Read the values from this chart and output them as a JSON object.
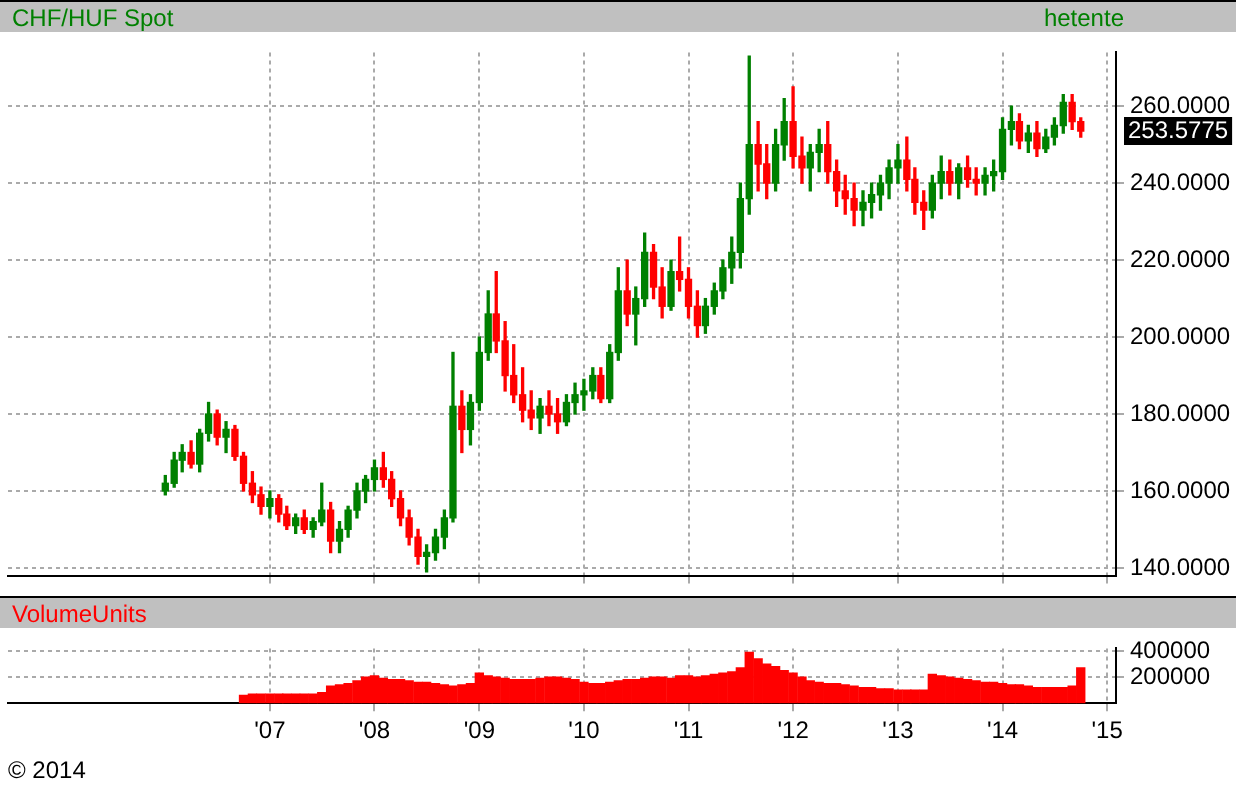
{
  "chart_data": [
    {
      "type": "candlestick",
      "title": "CHF/HUF Spot",
      "annotations": [
        "hetente",
        "253.5775"
      ],
      "x": [
        "2006-01",
        "2006-02",
        "2006-03",
        "2006-04",
        "2006-05",
        "2006-06",
        "2006-07",
        "2006-08",
        "2006-09",
        "2006-10",
        "2006-11",
        "2006-12",
        "2007-01",
        "2007-02",
        "2007-03",
        "2007-04",
        "2007-05",
        "2007-06",
        "2007-07",
        "2007-08",
        "2007-09",
        "2007-10",
        "2007-11",
        "2007-12",
        "2008-01",
        "2008-02",
        "2008-03",
        "2008-04",
        "2008-05",
        "2008-06",
        "2008-07",
        "2008-08",
        "2008-09",
        "2008-10",
        "2008-11",
        "2008-12",
        "2009-01",
        "2009-02",
        "2009-03",
        "2009-04",
        "2009-05",
        "2009-06",
        "2009-07",
        "2009-08",
        "2009-09",
        "2009-10",
        "2009-11",
        "2009-12",
        "2010-01",
        "2010-02",
        "2010-03",
        "2010-04",
        "2010-05",
        "2010-06",
        "2010-07",
        "2010-08",
        "2010-09",
        "2010-10",
        "2010-11",
        "2010-12",
        "2011-01",
        "2011-02",
        "2011-03",
        "2011-04",
        "2011-05",
        "2011-06",
        "2011-07",
        "2011-08",
        "2011-09",
        "2011-10",
        "2011-11",
        "2011-12",
        "2012-01",
        "2012-02",
        "2012-03",
        "2012-04",
        "2012-05",
        "2012-06",
        "2012-07",
        "2012-08",
        "2012-09",
        "2012-10",
        "2012-11",
        "2012-12",
        "2013-01",
        "2013-02",
        "2013-03",
        "2013-04",
        "2013-05",
        "2013-06",
        "2013-07",
        "2013-08",
        "2013-09",
        "2013-10",
        "2013-11",
        "2013-12",
        "2014-01",
        "2014-02",
        "2014-03",
        "2014-04",
        "2014-05",
        "2014-06",
        "2014-07",
        "2014-08",
        "2014-09",
        "2014-10"
      ],
      "ohlc": [
        [
          160,
          164,
          159,
          162
        ],
        [
          162,
          170,
          161,
          168
        ],
        [
          168,
          172,
          165,
          170
        ],
        [
          170,
          173,
          166,
          167
        ],
        [
          167,
          176,
          165,
          175
        ],
        [
          175,
          183,
          173,
          180
        ],
        [
          180,
          181,
          172,
          174
        ],
        [
          174,
          178,
          170,
          176
        ],
        [
          176,
          177,
          168,
          169
        ],
        [
          169,
          170,
          160,
          162
        ],
        [
          162,
          165,
          157,
          159
        ],
        [
          159,
          161,
          154,
          156
        ],
        [
          156,
          160,
          153,
          158
        ],
        [
          158,
          159,
          152,
          154
        ],
        [
          154,
          156,
          150,
          151
        ],
        [
          151,
          154,
          149,
          153
        ],
        [
          153,
          155,
          149,
          150
        ],
        [
          150,
          153,
          148,
          152
        ],
        [
          152,
          162,
          151,
          155
        ],
        [
          155,
          157,
          144,
          147
        ],
        [
          147,
          152,
          144,
          150
        ],
        [
          150,
          156,
          148,
          155
        ],
        [
          155,
          162,
          153,
          160
        ],
        [
          160,
          164,
          157,
          163
        ],
        [
          163,
          168,
          160,
          166
        ],
        [
          166,
          170,
          161,
          163
        ],
        [
          163,
          165,
          156,
          158
        ],
        [
          158,
          160,
          151,
          153
        ],
        [
          153,
          155,
          146,
          148
        ],
        [
          148,
          150,
          141,
          143
        ],
        [
          143,
          146,
          139,
          144
        ],
        [
          144,
          150,
          142,
          148
        ],
        [
          148,
          155,
          145,
          153
        ],
        [
          153,
          196,
          152,
          182
        ],
        [
          182,
          186,
          170,
          176
        ],
        [
          176,
          185,
          172,
          183
        ],
        [
          183,
          200,
          181,
          196
        ],
        [
          196,
          212,
          194,
          206
        ],
        [
          206,
          217,
          196,
          199
        ],
        [
          199,
          204,
          186,
          190
        ],
        [
          190,
          198,
          183,
          185
        ],
        [
          185,
          192,
          178,
          181
        ],
        [
          181,
          186,
          176,
          179
        ],
        [
          179,
          184,
          175,
          182
        ],
        [
          182,
          186,
          177,
          180
        ],
        [
          180,
          184,
          175,
          178
        ],
        [
          178,
          185,
          177,
          183
        ],
        [
          183,
          188,
          180,
          185
        ],
        [
          185,
          189,
          181,
          186
        ],
        [
          186,
          192,
          184,
          190
        ],
        [
          190,
          192,
          183,
          184
        ],
        [
          184,
          198,
          183,
          196
        ],
        [
          196,
          218,
          194,
          212
        ],
        [
          212,
          220,
          203,
          206
        ],
        [
          206,
          213,
          198,
          210
        ],
        [
          210,
          227,
          208,
          222
        ],
        [
          222,
          224,
          210,
          213
        ],
        [
          213,
          218,
          205,
          208
        ],
        [
          208,
          220,
          207,
          217
        ],
        [
          217,
          226,
          212,
          215
        ],
        [
          215,
          218,
          205,
          208
        ],
        [
          208,
          212,
          200,
          203
        ],
        [
          203,
          210,
          201,
          208
        ],
        [
          208,
          214,
          206,
          212
        ],
        [
          212,
          220,
          210,
          218
        ],
        [
          218,
          226,
          214,
          222
        ],
        [
          222,
          240,
          218,
          236
        ],
        [
          236,
          273,
          232,
          250
        ],
        [
          250,
          256,
          238,
          245
        ],
        [
          245,
          250,
          236,
          240
        ],
        [
          240,
          254,
          238,
          250
        ],
        [
          250,
          262,
          246,
          256
        ],
        [
          256,
          265,
          244,
          247
        ],
        [
          247,
          252,
          240,
          244
        ],
        [
          244,
          250,
          238,
          248
        ],
        [
          248,
          254,
          243,
          250
        ],
        [
          250,
          256,
          240,
          243
        ],
        [
          243,
          246,
          234,
          238
        ],
        [
          238,
          242,
          232,
          236
        ],
        [
          236,
          240,
          229,
          233
        ],
        [
          233,
          238,
          229,
          235
        ],
        [
          235,
          240,
          231,
          237
        ],
        [
          237,
          242,
          233,
          240
        ],
        [
          240,
          246,
          236,
          244
        ],
        [
          244,
          250,
          240,
          246
        ],
        [
          246,
          252,
          238,
          241
        ],
        [
          241,
          244,
          232,
          235
        ],
        [
          235,
          238,
          228,
          233
        ],
        [
          233,
          242,
          231,
          240
        ],
        [
          240,
          247,
          236,
          243
        ],
        [
          243,
          246,
          237,
          240
        ],
        [
          240,
          245,
          236,
          244
        ],
        [
          244,
          247,
          239,
          241
        ],
        [
          241,
          244,
          237,
          240
        ],
        [
          240,
          244,
          237,
          242
        ],
        [
          242,
          246,
          238,
          243
        ],
        [
          243,
          257,
          241,
          254
        ],
        [
          254,
          260,
          250,
          256
        ],
        [
          256,
          258,
          249,
          251
        ],
        [
          251,
          255,
          248,
          253
        ],
        [
          253,
          256,
          247,
          249
        ],
        [
          249,
          254,
          248,
          252
        ],
        [
          252,
          257,
          250,
          255
        ],
        [
          255,
          263,
          253,
          261
        ],
        [
          261,
          263,
          254,
          256
        ],
        [
          256,
          257,
          252,
          253.5775
        ]
      ],
      "colors": [
        "#008000",
        "#008000",
        "#008000",
        "#ff0000",
        "#008000",
        "#008000",
        "#ff0000",
        "#008000",
        "#ff0000",
        "#ff0000",
        "#ff0000",
        "#ff0000",
        "#008000",
        "#ff0000",
        "#ff0000",
        "#008000",
        "#ff0000",
        "#008000",
        "#008000",
        "#ff0000",
        "#008000",
        "#008000",
        "#008000",
        "#008000",
        "#008000",
        "#ff0000",
        "#ff0000",
        "#ff0000",
        "#ff0000",
        "#ff0000",
        "#008000",
        "#008000",
        "#008000",
        "#008000",
        "#ff0000",
        "#008000",
        "#008000",
        "#008000",
        "#ff0000",
        "#ff0000",
        "#ff0000",
        "#ff0000",
        "#ff0000",
        "#008000",
        "#ff0000",
        "#ff0000",
        "#008000",
        "#008000",
        "#008000",
        "#008000",
        "#ff0000",
        "#008000",
        "#008000",
        "#ff0000",
        "#008000",
        "#008000",
        "#ff0000",
        "#ff0000",
        "#008000",
        "#ff0000",
        "#ff0000",
        "#ff0000",
        "#008000",
        "#008000",
        "#008000",
        "#008000",
        "#008000",
        "#008000",
        "#ff0000",
        "#ff0000",
        "#008000",
        "#008000",
        "#ff0000",
        "#ff0000",
        "#008000",
        "#008000",
        "#ff0000",
        "#ff0000",
        "#ff0000",
        "#ff0000",
        "#008000",
        "#008000",
        "#008000",
        "#008000",
        "#008000",
        "#ff0000",
        "#ff0000",
        "#ff0000",
        "#008000",
        "#008000",
        "#ff0000",
        "#008000",
        "#ff0000",
        "#ff0000",
        "#008000",
        "#008000",
        "#008000",
        "#008000",
        "#ff0000",
        "#008000",
        "#ff0000",
        "#008000",
        "#008000",
        "#008000",
        "#ff0000",
        "#ff0000"
      ],
      "xlim": [
        "2004-07",
        "2015-02"
      ],
      "ylim": [
        138,
        274
      ],
      "xticks": [
        {
          "value": "2007",
          "label": null
        },
        {
          "value": "2008",
          "label": null
        },
        {
          "value": "2009",
          "label": null
        },
        {
          "value": "2010",
          "label": null
        },
        {
          "value": "2011",
          "label": null
        },
        {
          "value": "2012",
          "label": null
        },
        {
          "value": "2013",
          "label": null
        },
        {
          "value": "2014",
          "label": null
        },
        {
          "value": "2015",
          "label": null
        }
      ],
      "yticks": [
        {
          "value": 140,
          "label": "140.0000"
        },
        {
          "value": 160,
          "label": "160.0000"
        },
        {
          "value": 180,
          "label": "180.0000"
        },
        {
          "value": 200,
          "label": "200.0000"
        },
        {
          "value": 220,
          "label": "220.0000"
        },
        {
          "value": 240,
          "label": "240.0000"
        },
        {
          "value": 260,
          "label": "260.0000"
        }
      ],
      "grid": true,
      "legend": false,
      "tick_labels": "y"
    },
    {
      "type": "bar",
      "title": "VolumeUnits",
      "annotations": [
        "© 2014"
      ],
      "color": "#ff0000",
      "x": [
        "2006-10",
        "2006-11",
        "2006-12",
        "2007-01",
        "2007-02",
        "2007-03",
        "2007-04",
        "2007-05",
        "2007-06",
        "2007-07",
        "2007-08",
        "2007-09",
        "2007-10",
        "2007-11",
        "2007-12",
        "2008-01",
        "2008-02",
        "2008-03",
        "2008-04",
        "2008-05",
        "2008-06",
        "2008-07",
        "2008-08",
        "2008-09",
        "2008-10",
        "2008-11",
        "2008-12",
        "2009-01",
        "2009-02",
        "2009-03",
        "2009-04",
        "2009-05",
        "2009-06",
        "2009-07",
        "2009-08",
        "2009-09",
        "2009-10",
        "2009-11",
        "2009-12",
        "2010-01",
        "2010-02",
        "2010-03",
        "2010-04",
        "2010-05",
        "2010-06",
        "2010-07",
        "2010-08",
        "2010-09",
        "2010-10",
        "2010-11",
        "2010-12",
        "2011-01",
        "2011-02",
        "2011-03",
        "2011-04",
        "2011-05",
        "2011-06",
        "2011-07",
        "2011-08",
        "2011-09",
        "2011-10",
        "2011-11",
        "2011-12",
        "2012-01",
        "2012-02",
        "2012-03",
        "2012-04",
        "2012-05",
        "2012-06",
        "2012-07",
        "2012-08",
        "2012-09",
        "2012-10",
        "2012-11",
        "2012-12",
        "2013-01",
        "2013-02",
        "2013-03",
        "2013-04",
        "2013-05",
        "2013-06",
        "2013-07",
        "2013-08",
        "2013-09",
        "2013-10",
        "2013-11",
        "2013-12",
        "2014-01",
        "2014-02",
        "2014-03",
        "2014-04",
        "2014-05",
        "2014-06",
        "2014-07",
        "2014-08",
        "2014-09",
        "2014-10"
      ],
      "values": [
        60000,
        70000,
        70000,
        70000,
        70000,
        70000,
        70000,
        70000,
        70000,
        80000,
        130000,
        140000,
        150000,
        170000,
        200000,
        210000,
        190000,
        180000,
        180000,
        170000,
        160000,
        160000,
        150000,
        140000,
        130000,
        140000,
        150000,
        230000,
        210000,
        200000,
        190000,
        180000,
        180000,
        180000,
        190000,
        200000,
        200000,
        190000,
        180000,
        160000,
        150000,
        150000,
        160000,
        170000,
        180000,
        180000,
        190000,
        200000,
        200000,
        190000,
        210000,
        210000,
        200000,
        210000,
        220000,
        230000,
        240000,
        270000,
        390000,
        340000,
        300000,
        280000,
        250000,
        230000,
        200000,
        170000,
        160000,
        150000,
        150000,
        140000,
        130000,
        120000,
        120000,
        110000,
        110000,
        100000,
        100000,
        100000,
        100000,
        220000,
        210000,
        200000,
        190000,
        180000,
        170000,
        160000,
        160000,
        150000,
        140000,
        140000,
        130000,
        120000,
        120000,
        120000,
        120000,
        130000,
        270000
      ],
      "xlim": [
        "2004-07",
        "2015-02"
      ],
      "ylim": [
        0,
        420000
      ],
      "xticks": [
        {
          "value": "2007",
          "label": "'07"
        },
        {
          "value": "2008",
          "label": "'08"
        },
        {
          "value": "2009",
          "label": "'09"
        },
        {
          "value": "2010",
          "label": "'10"
        },
        {
          "value": "2011",
          "label": "'11"
        },
        {
          "value": "2012",
          "label": "'12"
        },
        {
          "value": "2013",
          "label": "'13"
        },
        {
          "value": "2014",
          "label": "'14"
        },
        {
          "value": "2015",
          "label": "'15"
        }
      ],
      "yticks": [
        200000,
        400000
      ],
      "grid": true,
      "legend": false
    }
  ]
}
